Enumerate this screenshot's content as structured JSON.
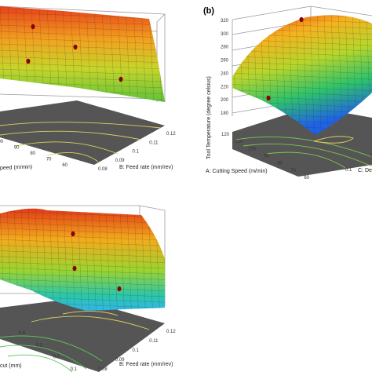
{
  "colors": {
    "box": "#9a9a9a",
    "floor": "#555555",
    "mesh": "#2b2b2b",
    "point": "#8b0000",
    "contour": "#d8d060"
  },
  "panel_labels": [
    "(b)"
  ],
  "chart_data": [
    {
      "type": "surface3d",
      "panel": "a",
      "xlabel_visible": "peed (m/min)",
      "ylabel_visible": "B: Feed rate (mm/rev)",
      "x_ticks": [
        "100",
        "90",
        "80",
        "70",
        "60"
      ],
      "y_ticks": [
        "0.12",
        "0.11",
        "0.1",
        "0.09",
        "0.08"
      ],
      "surface": {
        "x": [
          60,
          120
        ],
        "y": [
          0.08,
          0.12
        ],
        "peak": "high corner, gently sloping plane"
      },
      "points": 4
    },
    {
      "type": "surface3d",
      "panel": "b",
      "zlabel": "Tool Temperature (degree celsius)",
      "xlabel": "A: Cutting Speed (m/min)",
      "ylabel_visible": "C: De",
      "z_ticks": [
        "180",
        "200",
        "220",
        "240",
        "260",
        "280",
        "300",
        "320"
      ],
      "z_range": [
        170,
        320
      ],
      "x_ticks": [
        "120",
        "110",
        "100",
        "90",
        "80",
        "70",
        "60"
      ],
      "y_ticks": [
        "0.1",
        "0.2"
      ],
      "surface": {
        "shape": "dome with low corner near 170"
      },
      "points": 2
    },
    {
      "type": "surface3d",
      "panel": "c",
      "xlabel_visible": "cut (mm)",
      "ylabel": "B: Feed rate (mm/rev)",
      "x_ticks": [
        "0.4",
        "0.3",
        "0.2",
        "0.1"
      ],
      "y_ticks": [
        "0.12",
        "0.11",
        "0.1",
        "0.09",
        "0.08"
      ],
      "surface": {
        "shape": "ridge, curved downward toward front"
      },
      "points": 3
    }
  ]
}
